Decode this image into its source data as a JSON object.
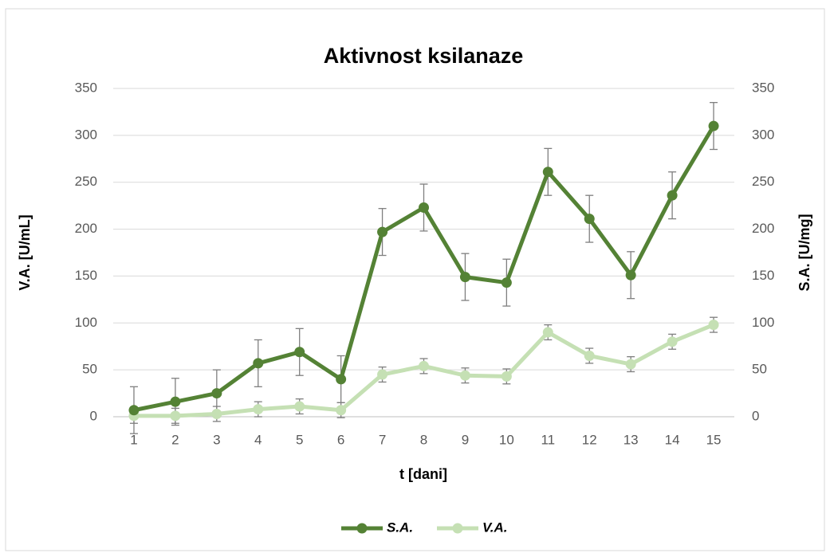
{
  "chart_data": {
    "type": "line",
    "title": "Aktivnost ksilanaze",
    "x_label": "t [dani]",
    "y_label": "V.A. [U/mL]",
    "y2_label": "S.A. [U/mg]",
    "categories": [
      "1",
      "2",
      "3",
      "4",
      "5",
      "6",
      "7",
      "8",
      "9",
      "10",
      "11",
      "12",
      "13",
      "14",
      "15"
    ],
    "series": [
      {
        "name": "S.A.",
        "color": "#548235",
        "axis": "y2",
        "values": [
          7,
          16,
          25,
          57,
          69,
          40,
          197,
          223,
          149,
          143,
          261,
          211,
          151,
          236,
          310
        ],
        "errors": [
          25,
          25,
          25,
          25,
          25,
          25,
          25,
          25,
          25,
          25,
          25,
          25,
          25,
          25,
          25
        ]
      },
      {
        "name": "V.A.",
        "color": "#c5e0b4",
        "values": [
          1,
          1,
          3,
          8,
          11,
          7,
          45,
          54,
          44,
          43,
          90,
          65,
          56,
          80,
          98
        ],
        "errors": [
          8,
          8,
          8,
          8,
          8,
          8,
          8,
          8,
          8,
          8,
          8,
          8,
          8,
          8,
          8
        ]
      }
    ],
    "ylim": [
      0,
      350
    ],
    "yticks": [
      0,
      50,
      100,
      150,
      200,
      250,
      300,
      350
    ],
    "y2lim": [
      0,
      350
    ],
    "y2ticks": [
      0,
      50,
      100,
      150,
      200,
      250,
      300,
      350
    ],
    "grid": true,
    "legend": "bottom"
  }
}
